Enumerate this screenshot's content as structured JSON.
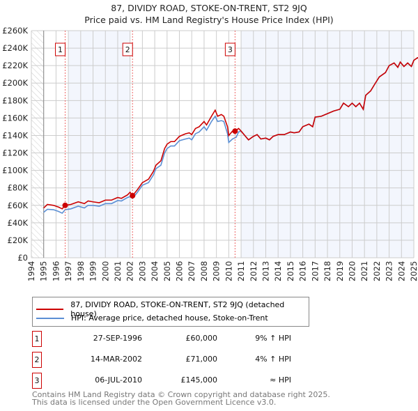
{
  "chart_data": {
    "type": "line",
    "title": "87, DIVIDY ROAD, STOKE-ON-TRENT, ST2 9JQ",
    "subtitle": "Price paid vs. HM Land Registry's House Price Index (HPI)",
    "xlim": [
      1994,
      2025
    ],
    "ylim": [
      0,
      260000
    ],
    "yticks": [
      {
        "v": 0,
        "label": "£0"
      },
      {
        "v": 20,
        "label": "£20K"
      },
      {
        "v": 40,
        "label": "£40K"
      },
      {
        "v": 60,
        "label": "£60K"
      },
      {
        "v": 80,
        "label": "£80K"
      },
      {
        "v": 100,
        "label": "£100K"
      },
      {
        "v": 120,
        "label": "£120K"
      },
      {
        "v": 140,
        "label": "£140K"
      },
      {
        "v": 160,
        "label": "£160K"
      },
      {
        "v": 180,
        "label": "£180K"
      },
      {
        "v": 200,
        "label": "£200K"
      },
      {
        "v": 220,
        "label": "£220K"
      },
      {
        "v": 240,
        "label": "£240K"
      },
      {
        "v": 260,
        "label": "£260K"
      }
    ],
    "xticks": [
      "1994",
      "1995",
      "1996",
      "1997",
      "1998",
      "1999",
      "2000",
      "2001",
      "2002",
      "2003",
      "2004",
      "2005",
      "2006",
      "2007",
      "2008",
      "2009",
      "2010",
      "2011",
      "2012",
      "2013",
      "2014",
      "2015",
      "2016",
      "2017",
      "2018",
      "2019",
      "2020",
      "2021",
      "2022",
      "2023",
      "2024",
      "2025"
    ],
    "x": [
      1995.0,
      1995.3,
      1995.8,
      1996.2,
      1996.5,
      1996.74,
      1997.2,
      1997.8,
      1998.3,
      1998.6,
      1999.0,
      1999.5,
      2000.0,
      2000.5,
      2001.0,
      2001.3,
      2001.8,
      2002.0,
      2002.2,
      2002.6,
      2003.0,
      2003.5,
      2003.9,
      2004.1,
      2004.5,
      2004.8,
      2005.0,
      2005.3,
      2005.6,
      2006.0,
      2006.5,
      2006.8,
      2007.0,
      2007.3,
      2007.6,
      2008.0,
      2008.2,
      2008.6,
      2008.9,
      2009.1,
      2009.4,
      2009.6,
      2009.9,
      2010.0,
      2010.3,
      2010.6,
      2010.8,
      2011.0,
      2011.3,
      2011.6,
      2012.0,
      2012.3,
      2012.6,
      2013.0,
      2013.3,
      2013.6,
      2014.0,
      2014.5,
      2015.0,
      2015.3,
      2015.7,
      2016.0,
      2016.5,
      2016.8,
      2017.0,
      2017.5,
      2018.0,
      2018.5,
      2019.0,
      2019.3,
      2019.7,
      2020.0,
      2020.3,
      2020.6,
      2020.9,
      2021.1,
      2021.5,
      2021.8,
      2022.2,
      2022.7,
      2023.0,
      2023.4,
      2023.7,
      2023.9,
      2024.2,
      2024.5,
      2024.8,
      2025.0,
      2025.3,
      2025.5
    ],
    "series": [
      {
        "name": "87, DIVIDY ROAD, STOKE-ON-TRENT, ST2 9JQ (detached house)",
        "color": "#cc0000",
        "unit": "£K",
        "values": [
          57,
          61,
          60,
          58,
          56,
          60,
          61,
          64,
          62,
          65,
          64,
          63,
          66,
          66,
          69,
          68,
          72,
          75,
          71,
          78,
          86,
          90,
          99,
          106,
          111,
          125,
          130,
          133,
          133,
          139,
          142,
          143,
          141,
          148,
          150,
          156,
          152,
          162,
          169,
          162,
          164,
          162,
          150,
          140,
          145,
          146,
          148,
          145,
          140,
          135,
          139,
          141,
          136,
          137,
          135,
          139,
          141,
          141,
          144,
          143,
          144,
          150,
          153,
          150,
          161,
          162,
          165,
          168,
          170,
          177,
          173,
          177,
          173,
          177,
          170,
          186,
          191,
          198,
          207,
          212,
          220,
          223,
          218,
          224,
          219,
          223,
          219,
          226,
          229,
          227
        ]
      },
      {
        "name": "HPI: Average price, detached house, Stoke-on-Trent",
        "color": "#5b8fd4",
        "unit": "£K",
        "values": [
          52,
          55.5,
          55,
          53,
          51,
          55,
          56,
          59,
          57,
          60,
          60,
          59,
          62,
          62,
          65.5,
          65,
          69,
          70,
          68,
          75,
          83,
          86,
          95,
          102,
          106,
          120,
          125,
          128,
          128,
          134,
          136,
          137,
          135,
          142,
          144,
          150,
          146,
          156,
          162,
          156,
          157,
          156,
          142,
          132,
          136,
          138,
          144,
          145,
          140,
          135,
          139,
          141,
          136,
          137,
          135,
          139,
          141,
          141,
          144,
          143,
          144,
          150,
          153,
          150,
          161,
          162,
          165,
          168,
          170,
          177,
          173,
          177,
          173,
          177,
          170,
          186,
          191,
          198,
          207,
          212,
          220,
          223,
          218,
          224,
          219,
          223,
          219,
          226,
          229,
          227
        ]
      }
    ],
    "sales": [
      {
        "label": "1",
        "x": 1996.74,
        "value": 60,
        "date": "27-SEP-1996",
        "price": "£60,000",
        "hpi": "9% ↑ HPI"
      },
      {
        "label": "2",
        "x": 2002.2,
        "value": 71,
        "date": "14-MAR-2002",
        "price": "£71,000",
        "hpi": "4% ↑ HPI"
      },
      {
        "label": "3",
        "x": 2010.51,
        "value": 145,
        "date": "06-JUL-2010",
        "price": "£145,000",
        "hpi": "≈ HPI"
      }
    ],
    "shaded": [
      [
        1997,
        2002
      ],
      [
        2011,
        2025
      ]
    ],
    "hatched": [
      1994,
      1995
    ]
  },
  "footer": [
    "Contains HM Land Registry data © Crown copyright and database right 2025.",
    "This data is licensed under the Open Government Licence v3.0."
  ]
}
